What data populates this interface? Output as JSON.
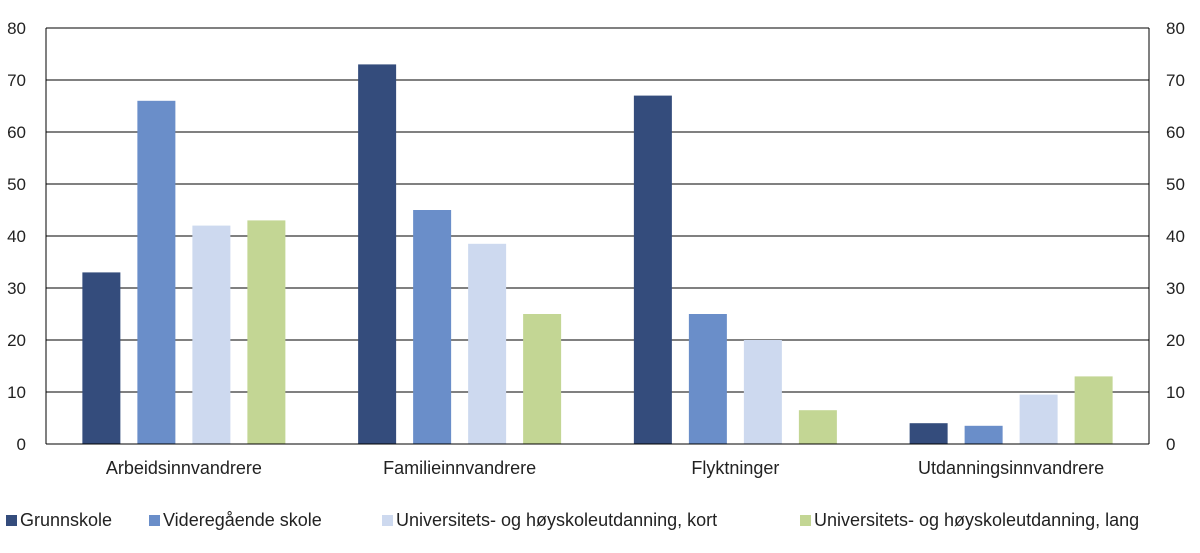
{
  "chart_data": {
    "type": "bar",
    "title": "",
    "xlabel": "",
    "ylabel": "",
    "ylim": [
      0,
      80
    ],
    "yticks": [
      0,
      10,
      20,
      30,
      40,
      50,
      60,
      70,
      80
    ],
    "dual_y_axis": true,
    "grid": true,
    "legend_position": "bottom",
    "categories": [
      "Arbeidsinnvandrere",
      "Familieinnvandrere",
      "Flyktninger",
      "Utdanningsinnvandrere"
    ],
    "series": [
      {
        "name": "Grunnskole",
        "color": "#344c7c",
        "values": [
          33,
          73,
          67,
          4
        ]
      },
      {
        "name": "Videregående skole",
        "color": "#6a8ec9",
        "values": [
          66,
          45,
          25,
          3.5
        ]
      },
      {
        "name": "Universitets- og høyskoleutdanning, kort",
        "color": "#cdd9ef",
        "values": [
          42,
          38.5,
          20,
          9.5
        ]
      },
      {
        "name": "Universitets- og høyskoleutdanning, lang",
        "color": "#c3d694",
        "values": [
          43,
          25,
          6.5,
          13
        ]
      }
    ]
  }
}
